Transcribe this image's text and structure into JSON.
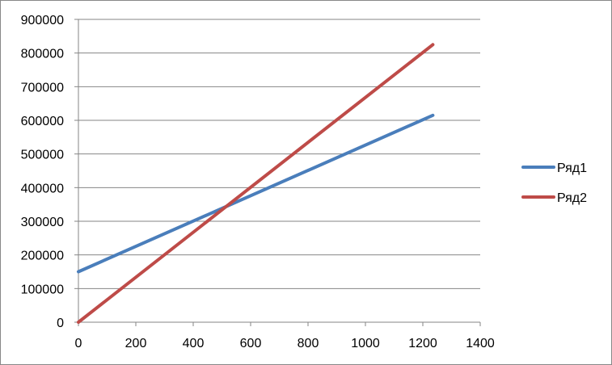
{
  "chart_data": {
    "type": "line",
    "title": "",
    "xlabel": "",
    "ylabel": "",
    "xlim": [
      0,
      1400
    ],
    "ylim": [
      0,
      900000
    ],
    "x_ticks": [
      0,
      200,
      400,
      600,
      800,
      1000,
      1200,
      1400
    ],
    "y_ticks": [
      0,
      100000,
      200000,
      300000,
      400000,
      500000,
      600000,
      700000,
      800000,
      900000
    ],
    "x_tick_labels": [
      "0",
      "200",
      "400",
      "600",
      "800",
      "1000",
      "1200",
      "1400"
    ],
    "y_tick_labels": [
      "0",
      "100000",
      "200000",
      "300000",
      "400000",
      "500000",
      "600000",
      "700000",
      "800000",
      "900000"
    ],
    "grid": "horizontal",
    "legend_position": "right",
    "series": [
      {
        "name": "Ряд1",
        "color": "#4a7ebb",
        "x": [
          0,
          1235
        ],
        "y": [
          150000,
          615000
        ]
      },
      {
        "name": "Ряд2",
        "color": "#be4b48",
        "x": [
          0,
          1235
        ],
        "y": [
          0,
          825000
        ]
      }
    ]
  }
}
